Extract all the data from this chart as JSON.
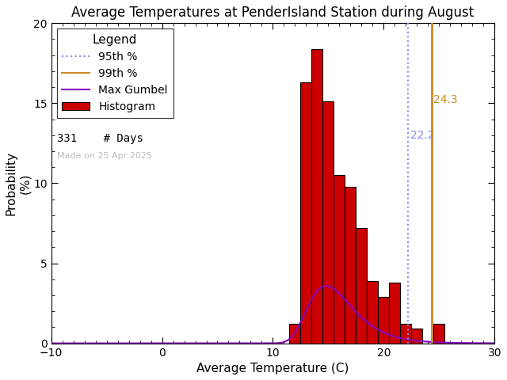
{
  "title": "Average Temperatures at PenderIsland Station during August",
  "xlabel": "Average Temperature (C)",
  "ylabel": "Probability\n(%)",
  "xlim": [
    -10,
    30
  ],
  "ylim": [
    0,
    20
  ],
  "xticks": [
    -10,
    0,
    10,
    20,
    30
  ],
  "yticks": [
    0,
    5,
    10,
    15,
    20
  ],
  "bar_centers": [
    12,
    13,
    14,
    15,
    16,
    17,
    18,
    19,
    20,
    21,
    22,
    23,
    25
  ],
  "bar_heights": [
    1.2,
    16.3,
    18.4,
    15.1,
    10.5,
    9.8,
    7.2,
    3.9,
    2.9,
    3.8,
    1.2,
    0.9,
    1.2
  ],
  "hist_color": "#CC0000",
  "hist_edgecolor": "#000000",
  "gumbel_mu": 14.8,
  "gumbel_beta": 2.0,
  "gumbel_scale": 19.5,
  "gumbel_color": "#8800BB",
  "pct95_val": 22.2,
  "pct95_color": "#8888FF",
  "pct99_val": 24.3,
  "pct99_color": "#CC8822",
  "pct95_label": "22.2",
  "pct99_label": "24.3",
  "n_days": 331,
  "watermark": "Made on 25 Apr 2025",
  "watermark_color": "#bbbbbb",
  "background_color": "#FFFFFF",
  "title_fontsize": 12,
  "axis_fontsize": 11,
  "legend_fontsize": 10,
  "tick_fontsize": 10
}
